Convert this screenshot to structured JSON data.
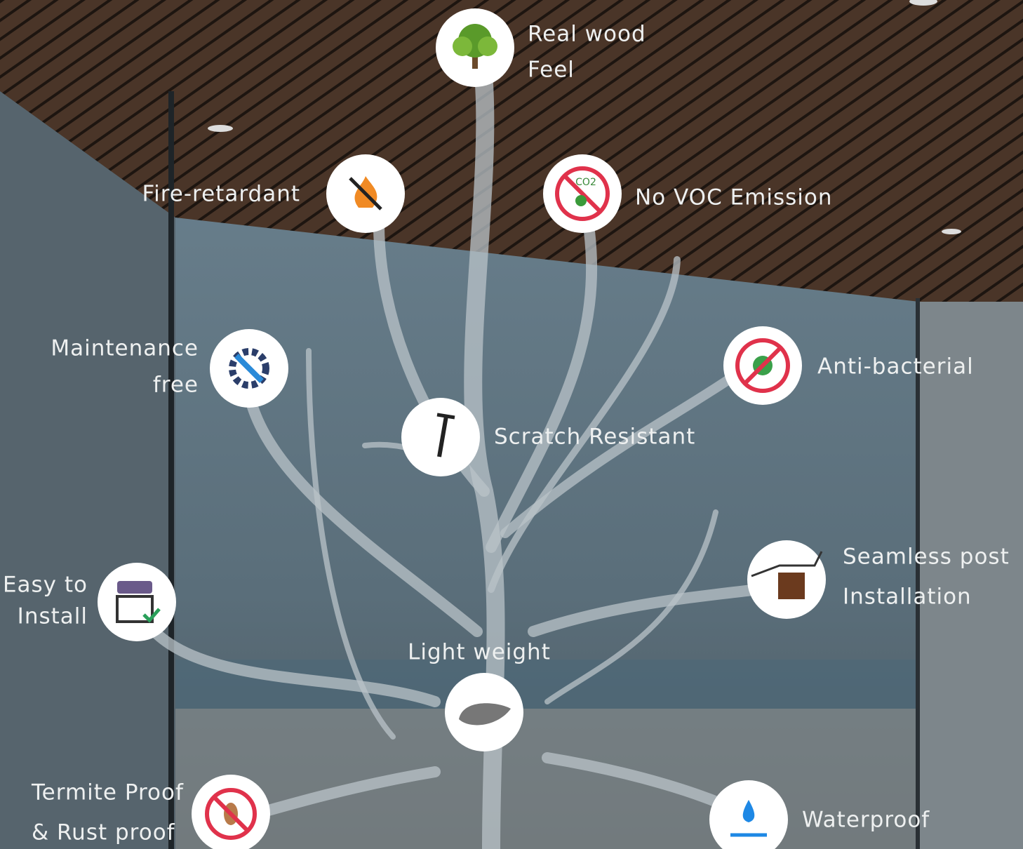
{
  "features": [
    {
      "lines": [
        "Real wood",
        "Feel"
      ]
    },
    {
      "lines": [
        "Fire-retardant"
      ]
    },
    {
      "lines": [
        "No VOC Emission"
      ]
    },
    {
      "lines": [
        "Maintenance",
        "free"
      ]
    },
    {
      "lines": [
        "Anti-bacterial"
      ]
    },
    {
      "lines": [
        "Scratch Resistant"
      ]
    },
    {
      "lines": [
        "Easy to",
        "Install"
      ]
    },
    {
      "lines": [
        "Seamless post",
        "Installation"
      ]
    },
    {
      "lines": [
        "Light weight"
      ]
    },
    {
      "lines": [
        "Termite Proof",
        "& Rust proof"
      ]
    },
    {
      "lines": [
        "Waterproof"
      ]
    }
  ]
}
